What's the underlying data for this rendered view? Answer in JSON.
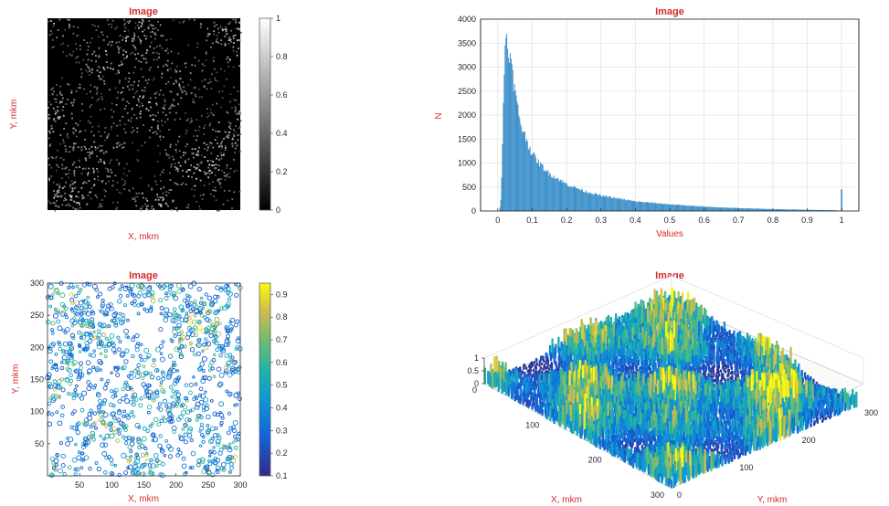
{
  "colors": {
    "accent_red": "#d42a2a",
    "bar_blue": "#3a8ec9",
    "grid": "#e3e3e3",
    "parula_low": "#352a87",
    "parula_mid": "#21b3a6",
    "parula_high": "#f9fb0e"
  },
  "chart_data": [
    {
      "id": "panel-1",
      "type": "heatmap",
      "title": "Image",
      "xlabel": "X, mkm",
      "ylabel": "Y, mkm",
      "colormap": "gray",
      "colorbar": {
        "min": 0,
        "max": 1,
        "ticks": [
          "0",
          "0.2",
          "0.4",
          "0.6",
          "0.8",
          "1"
        ]
      },
      "axis_ticks_visible": false
    },
    {
      "id": "panel-2",
      "type": "bar",
      "title": "Image",
      "xlabel": "Values",
      "ylabel": "N",
      "xlim": [
        -0.05,
        1.05
      ],
      "ylim": [
        0,
        4000
      ],
      "grid": true,
      "xticks": [
        "0",
        "0.1",
        "0.2",
        "0.3",
        "0.4",
        "0.5",
        "0.6",
        "0.7",
        "0.8",
        "0.9",
        "1"
      ],
      "yticks": [
        "0",
        "500",
        "1000",
        "1500",
        "2000",
        "2500",
        "3000",
        "3500",
        "4000"
      ],
      "x": [
        0,
        0.005,
        0.01,
        0.015,
        0.02,
        0.025,
        0.03,
        0.04,
        0.05,
        0.06,
        0.07,
        0.08,
        0.1,
        0.12,
        0.15,
        0.2,
        0.25,
        0.3,
        0.4,
        0.5,
        0.6,
        0.7,
        0.8,
        0.9,
        0.99,
        1.0
      ],
      "values": [
        0,
        0,
        300,
        1800,
        3400,
        3650,
        3500,
        3000,
        2500,
        2050,
        1750,
        1550,
        1200,
        1000,
        780,
        560,
        420,
        320,
        200,
        140,
        90,
        60,
        40,
        25,
        15,
        450
      ]
    },
    {
      "id": "panel-3",
      "type": "heatmap",
      "title": "Image",
      "xlabel": "X, mkm",
      "ylabel": "Y, mkm",
      "colormap": "parula",
      "xlim": [
        0,
        300
      ],
      "ylim": [
        0,
        300
      ],
      "xticks": [
        "50",
        "100",
        "150",
        "200",
        "250",
        "300"
      ],
      "yticks": [
        "50",
        "100",
        "150",
        "200",
        "250",
        "300"
      ],
      "colorbar": {
        "min": 0.1,
        "max": 0.95,
        "ticks": [
          "0.1",
          "0.2",
          "0.3",
          "0.4",
          "0.5",
          "0.6",
          "0.7",
          "0.8",
          "0.9"
        ]
      }
    },
    {
      "id": "panel-4",
      "type": "surface",
      "title": "Image",
      "xlabel": "X, mkm",
      "ylabel": "Y, mkm",
      "colormap": "parula",
      "xlim": [
        0,
        300
      ],
      "ylim": [
        0,
        300
      ],
      "zlim": [
        0,
        1
      ],
      "xticks": [
        "0",
        "100",
        "200",
        "300"
      ],
      "yticks": [
        "0",
        "100",
        "200",
        "300"
      ],
      "zticks": [
        "0",
        "0.5",
        "1"
      ]
    }
  ]
}
